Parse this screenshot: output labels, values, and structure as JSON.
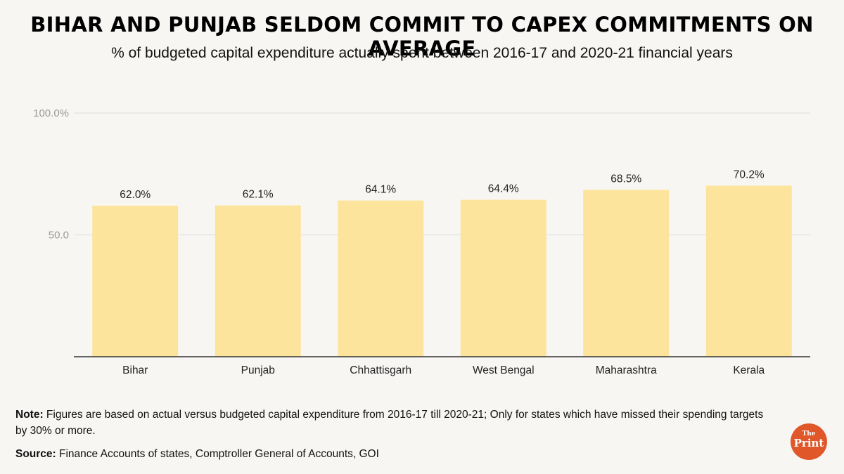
{
  "chart_data": {
    "type": "bar",
    "title": "BIHAR AND PUNJAB SELDOM COMMIT TO CAPEX COMMITMENTS ON AVERAGE",
    "subtitle": "% of budgeted capital expenditure actually spent between 2016-17 and 2020-21 financial years",
    "categories": [
      "Bihar",
      "Punjab",
      "Chhattisgarh",
      "West Bengal",
      "Maharashtra",
      "Kerala"
    ],
    "values": [
      62.0,
      62.1,
      64.1,
      64.4,
      68.5,
      70.2
    ],
    "value_labels": [
      "62.0%",
      "62.1%",
      "64.1%",
      "64.4%",
      "68.5%",
      "70.2%"
    ],
    "yticks": [
      50,
      100
    ],
    "ytick_labels": [
      "50.0",
      "100.0%"
    ],
    "ylim": [
      0,
      100
    ],
    "xlabel": "",
    "ylabel": "",
    "bar_color": "#fde49d",
    "grid": true
  },
  "note_label": "Note:",
  "note_text": " Figures are based on actual versus budgeted capital expenditure from 2016-17 till 2020-21; Only for states which have missed their spending targets by 30% or more.",
  "source_label": "Source:",
  "source_text": " Finance Accounts of states, Comptroller General of Accounts, GOI",
  "logo": {
    "top": "The",
    "bottom": "Print"
  }
}
